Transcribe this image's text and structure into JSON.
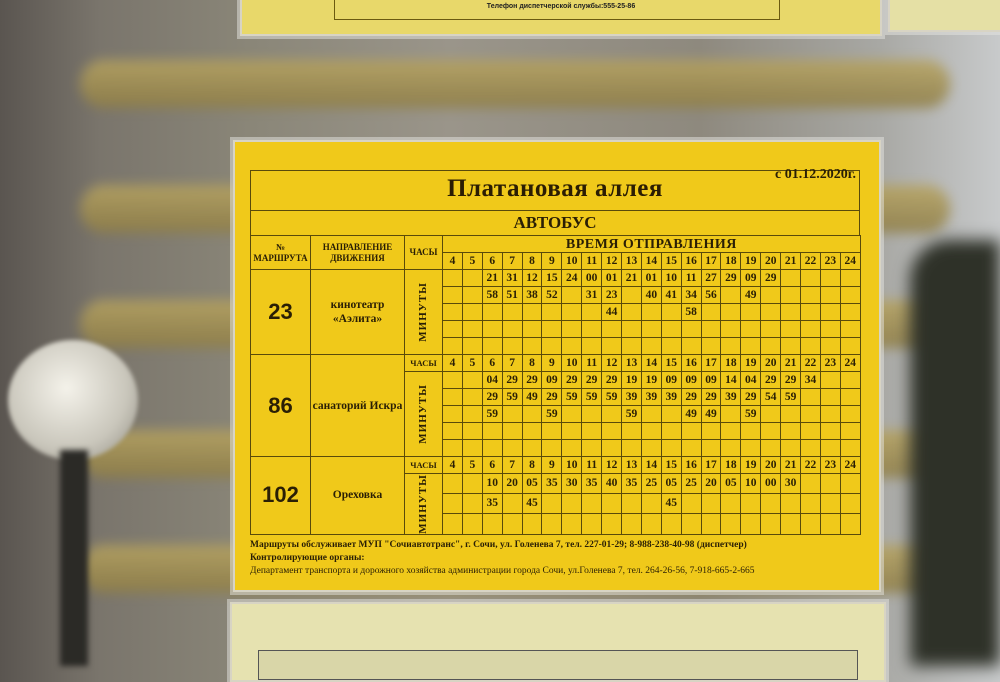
{
  "top_card": {
    "text": "Телефон диспетчерской службы:555-25-86"
  },
  "schedule": {
    "title": "Платановая аллея",
    "date": "с 01.12.2020г.",
    "vehicle": "АВТОБУС",
    "headers": {
      "route_no": "№ МАРШРУТА",
      "direction": "НАПРАВЛЕНИЕ ДВИЖЕНИЯ",
      "hours_label": "ЧАСЫ",
      "departure": "ВРЕМЯ ОТПРАВЛЕНИЯ",
      "minutes_label": "МИНУТЫ"
    },
    "hours": [
      "4",
      "5",
      "6",
      "7",
      "8",
      "9",
      "10",
      "11",
      "12",
      "13",
      "14",
      "15",
      "16",
      "17",
      "18",
      "19",
      "20",
      "21",
      "22",
      "23",
      "24"
    ],
    "routes": [
      {
        "number": "23",
        "destination": "кинотеатр «Аэлита»",
        "show_hours_row": false,
        "minutes": [
          [
            "",
            "",
            "21",
            "31",
            "12",
            "15",
            "24",
            "00",
            "01",
            "21",
            "01",
            "10",
            "11",
            "27",
            "29",
            "09",
            "29",
            "",
            "",
            "",
            ""
          ],
          [
            "",
            "",
            "58",
            "51",
            "38",
            "52",
            "",
            "31",
            "23",
            "",
            "40",
            "41",
            "34",
            "56",
            "",
            "49",
            "",
            "",
            "",
            "",
            ""
          ],
          [
            "",
            "",
            "",
            "",
            "",
            "",
            "",
            "",
            "44",
            "",
            "",
            "",
            "58",
            "",
            "",
            "",
            "",
            "",
            "",
            "",
            ""
          ],
          [],
          []
        ]
      },
      {
        "number": "86",
        "destination": "санаторий Искра",
        "show_hours_row": true,
        "minutes": [
          [
            "",
            "",
            "04",
            "29",
            "29",
            "09",
            "29",
            "29",
            "29",
            "19",
            "19",
            "09",
            "09",
            "09",
            "14",
            "04",
            "29",
            "29",
            "34",
            "",
            ""
          ],
          [
            "",
            "",
            "29",
            "59",
            "49",
            "29",
            "59",
            "59",
            "59",
            "39",
            "39",
            "39",
            "29",
            "29",
            "39",
            "29",
            "54",
            "59",
            "",
            "",
            ""
          ],
          [
            "",
            "",
            "59",
            "",
            "",
            "59",
            "",
            "",
            "",
            "59",
            "",
            "",
            "49",
            "49",
            "",
            "59",
            "",
            "",
            "",
            "",
            ""
          ],
          [],
          []
        ]
      },
      {
        "number": "102",
        "destination": "Ореховка",
        "show_hours_row": true,
        "minutes": [
          [
            "",
            "",
            "10",
            "20",
            "05",
            "35",
            "30",
            "35",
            "40",
            "35",
            "25",
            "05",
            "25",
            "20",
            "05",
            "10",
            "00",
            "30",
            "",
            "",
            ""
          ],
          [
            "",
            "",
            "35",
            "",
            "45",
            "",
            "",
            "",
            "",
            "",
            "",
            "45",
            "",
            "",
            "",
            "",
            "",
            "",
            "",
            "",
            ""
          ],
          []
        ]
      }
    ],
    "footer": {
      "operator": "Маршруты обслуживает МУП \"Сочиавтотранс\", г. Сочи, ул. Голенева 7, тел.  227-01-29; 8-988-238-40-98 (диспетчер)",
      "control_label": "Контролирующие органы:",
      "control": "Департамент транспорта и дорожного хозяйства администрации города Сочи,  ул.Голенева 7, тел. 264-26-56, 7-918-665-2-665"
    }
  },
  "colors": {
    "sign_yellow": "#f0c91a",
    "ink": "#2a1f05"
  }
}
